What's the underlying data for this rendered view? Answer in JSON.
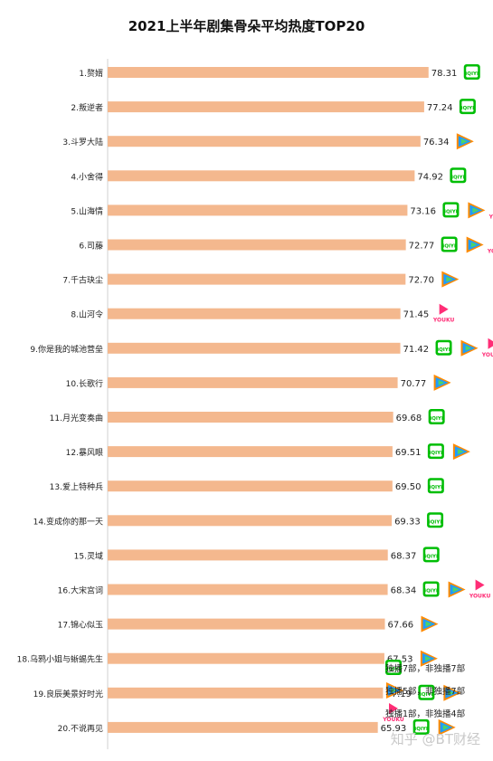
{
  "chart_data": {
    "type": "bar",
    "orientation": "horizontal",
    "title": "2021上半年剧集骨朵平均热度TOP20",
    "bar_color": "#F4B88E",
    "categories": [
      "1.赘婿",
      "2.叛逆者",
      "3.斗罗大陆",
      "4.小舍得",
      "5.山海情",
      "6.司藤",
      "7.千古玦尘",
      "8.山河令",
      "9.你是我的城池营垒",
      "10.长歌行",
      "11.月光变奏曲",
      "12.暴风眼",
      "13.爱上特种兵",
      "14.变成你的那一天",
      "15.灵域",
      "16.大宋宫词",
      "17.锦心似玉",
      "18.乌鸦小姐与蜥蜴先生",
      "19.良辰美景好时光",
      "20.不说再见"
    ],
    "values": [
      78.31,
      77.24,
      76.34,
      74.92,
      73.16,
      72.77,
      72.7,
      71.45,
      71.42,
      70.77,
      69.68,
      69.51,
      69.5,
      69.33,
      68.37,
      68.34,
      67.66,
      67.53,
      67.19,
      65.93
    ],
    "value_labels": [
      "78.31",
      "77.24",
      "76.34",
      "74.92",
      "73.16",
      "72.77",
      "72.70",
      "71.45",
      "71.42",
      "70.77",
      "69.68",
      "69.51",
      "69.50",
      "69.33",
      "68.37",
      "68.34",
      "67.66",
      "67.53",
      "67.19",
      "65.93"
    ],
    "platforms": [
      [
        "iqiyi"
      ],
      [
        "iqiyi"
      ],
      [
        "tencent"
      ],
      [
        "iqiyi"
      ],
      [
        "iqiyi",
        "tencent",
        "youku"
      ],
      [
        "iqiyi",
        "tencent",
        "youku"
      ],
      [
        "tencent"
      ],
      [
        "youku"
      ],
      [
        "iqiyi",
        "tencent",
        "youku"
      ],
      [
        "tencent"
      ],
      [
        "iqiyi"
      ],
      [
        "iqiyi",
        "tencent"
      ],
      [
        "iqiyi"
      ],
      [
        "iqiyi"
      ],
      [
        "iqiyi"
      ],
      [
        "iqiyi",
        "tencent",
        "youku"
      ],
      [
        "tencent"
      ],
      [
        "tencent"
      ],
      [
        "iqiyi",
        "tencent"
      ],
      [
        "iqiyi",
        "tencent"
      ]
    ],
    "xlim": [
      0,
      80
    ],
    "grid": false,
    "legend_position": "bottom-right"
  },
  "legend": [
    {
      "platform": "iqiyi",
      "text": "独播7部，非独播7部"
    },
    {
      "platform": "tencent",
      "text": "独播5部，非独播7部"
    },
    {
      "platform": "youku",
      "text": "独播1部，非独播4部"
    }
  ],
  "icons": {
    "iqiyi": {
      "label": "iQIYI",
      "color": "#00BE06"
    },
    "tencent": {
      "colors": [
        "#FF8A00",
        "#1F9BFF",
        "#4CD36A"
      ]
    },
    "youku": {
      "label": "YOUKU",
      "colors": [
        "#FF2D76",
        "#1D8FFF"
      ]
    }
  },
  "watermark": "知乎 @BT财经"
}
